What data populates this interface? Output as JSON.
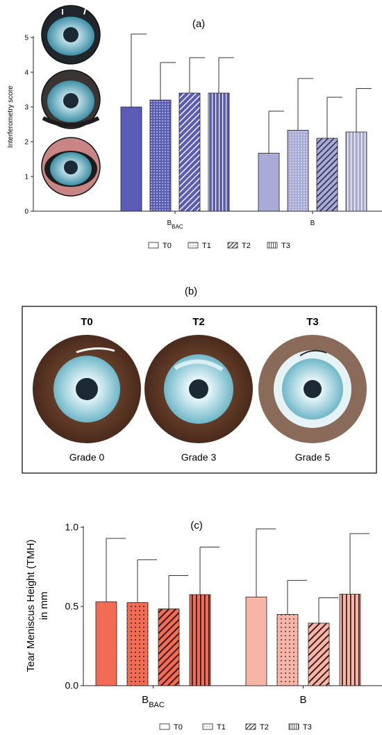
{
  "chart_data": [
    {
      "type": "bar",
      "panel_label": "(a)",
      "ylabel": "Interferometry score",
      "ylim": [
        0,
        5
      ],
      "yticks": [
        "0",
        "1",
        "2",
        "3",
        "4",
        "5"
      ],
      "categories": [
        "BBAC",
        "B"
      ],
      "category_main": [
        "B",
        "B"
      ],
      "category_sub": [
        "BAC",
        ""
      ],
      "series": [
        {
          "name": "T0",
          "pattern": "solid",
          "values": [
            3.0,
            1.67
          ],
          "err_upper": [
            5.1,
            2.88
          ]
        },
        {
          "name": "T1",
          "pattern": "dots",
          "values": [
            3.2,
            2.33
          ],
          "err_upper": [
            4.28,
            3.82
          ]
        },
        {
          "name": "T2",
          "pattern": "diagonal",
          "values": [
            3.4,
            2.1
          ],
          "err_upper": [
            4.42,
            3.28
          ]
        },
        {
          "name": "T3",
          "pattern": "vertical",
          "values": [
            3.4,
            2.28
          ],
          "err_upper": [
            4.42,
            3.53
          ]
        }
      ],
      "colors": [
        "#5b5cb5",
        "#aaaad6"
      ],
      "legend": [
        "T0",
        "T1",
        "T2",
        "T3"
      ],
      "legend_position": "bottom"
    },
    {
      "type": "bar",
      "panel_label": "(c)",
      "ylabel_line1": "Tear Meniscus Height (TMH)",
      "ylabel_line2": "in mm",
      "ylim": [
        0,
        1.0
      ],
      "yticks": [
        "0.0",
        "0.5",
        "1.0"
      ],
      "categories": [
        "BBAC",
        "B"
      ],
      "category_main": [
        "B",
        "B"
      ],
      "category_sub": [
        "BAC",
        ""
      ],
      "series": [
        {
          "name": "T0",
          "pattern": "solid",
          "values": [
            0.53,
            0.56
          ],
          "err_upper": [
            0.93,
            0.99
          ]
        },
        {
          "name": "T1",
          "pattern": "dots",
          "values": [
            0.525,
            0.45
          ],
          "err_upper": [
            0.795,
            0.665
          ]
        },
        {
          "name": "T2",
          "pattern": "diagonal",
          "values": [
            0.485,
            0.395
          ],
          "err_upper": [
            0.695,
            0.555
          ]
        },
        {
          "name": "T3",
          "pattern": "vertical",
          "values": [
            0.575,
            0.578
          ],
          "err_upper": [
            0.875,
            0.96
          ]
        }
      ],
      "colors": [
        "#f26b55",
        "#f7b5a8"
      ],
      "legend": [
        "T0",
        "T1",
        "T2",
        "T3"
      ],
      "legend_position": "bottom"
    }
  ],
  "panel_b": {
    "label": "(b)",
    "eyes": [
      {
        "time": "T0",
        "grade": "Grade 0"
      },
      {
        "time": "T2",
        "grade": "Grade 3"
      },
      {
        "time": "T3",
        "grade": "Grade 5"
      }
    ]
  },
  "colors": {
    "iris_cyan": "#a9d9e4",
    "sclera_brown": "#6b3f2a",
    "eye_dark": "#1c2a33"
  }
}
